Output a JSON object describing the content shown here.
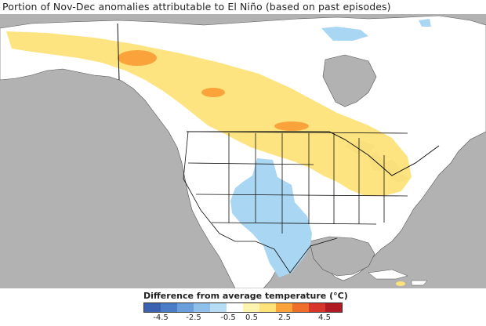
{
  "title": "Portion of Nov-Dec anomalies attributable to El Niño (based on past episodes)",
  "legend": {
    "title": "Difference from average temperature (°C)",
    "ticks": [
      "-4.5",
      "-2.5",
      "-0.5",
      "0.5",
      "2.5",
      "4.5"
    ],
    "colors": [
      "#3a62b0",
      "#4a7cc8",
      "#6a9fdc",
      "#8fc0ea",
      "#b7dcf6",
      "#ffffff",
      "#fff3b0",
      "#fde37a",
      "#f9a33a",
      "#ef6f2a",
      "#d8352a",
      "#b01a22"
    ]
  },
  "map": {
    "land_color": "#ffffff",
    "ocean_color": "#b0b0b0",
    "outside_color": "#a8a8a8",
    "warm_light": "#fde37a",
    "warm_strong": "#f9a33a",
    "cool_light": "#a9d7f3"
  }
}
